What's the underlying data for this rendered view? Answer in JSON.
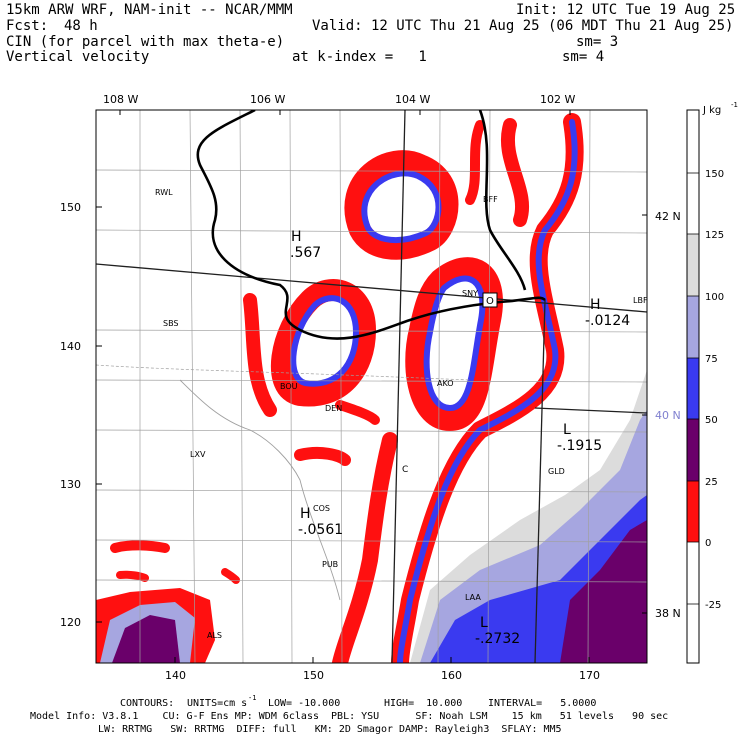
{
  "header": {
    "model": "15km ARW WRF, NAM-init -- NCAR/MMM",
    "init": "Init: 12 UTC Tue 19 Aug 25",
    "fcst_label": "Fcst:",
    "fcst_value": "48 h",
    "valid": "Valid: 12 UTC Thu 21 Aug 25 (06 MDT Thu 21 Aug 25)",
    "field1": "CIN (for parcel with max theta-e)",
    "sm1": "sm= 3",
    "field2": "Vertical velocity",
    "k_index": "at k-index =   1",
    "sm2": "sm= 4"
  },
  "map": {
    "top_lon_labels": [
      "108 W",
      "106 W",
      "104 W",
      "102 W"
    ],
    "right_lat_labels": [
      "42 N",
      "40 N",
      "38 N"
    ],
    "left_y_ticks": [
      "150",
      "140",
      "130",
      "120"
    ],
    "bottom_x_ticks": [
      "140",
      "150",
      "160",
      "170"
    ],
    "stations": [
      "RWL",
      "SBS",
      "BOU",
      "DEN",
      "LXV",
      "COS",
      "PUB",
      "ALS",
      "AKO",
      "SNY",
      "LBF",
      "GLD",
      "LAA",
      "BFF"
    ],
    "station_label_c": "C",
    "highs_lows": [
      {
        "letter": "H",
        "value": ".567"
      },
      {
        "letter": "H",
        "value": "-.0124"
      },
      {
        "letter": "L",
        "value": "-.1915"
      },
      {
        "letter": "H",
        "value": "-.0561"
      },
      {
        "letter": "L",
        "value": "-.2732"
      }
    ],
    "site_marker": "O"
  },
  "colorbar": {
    "units": "J kg",
    "units_exp": "-1",
    "labels": [
      "150",
      "125",
      "100",
      "75",
      "50",
      "25",
      "0",
      "-25"
    ],
    "fills": [
      "#ffffff",
      "#ffffff",
      "#dcdcdc",
      "#a6a6e0",
      "#3a3af0",
      "#6a006a",
      "#ff1010",
      "#ffffff",
      "#ffffff"
    ]
  },
  "footer": {
    "contours_label": "CONTOURS:",
    "units": "UNITS=cm s",
    "units_exp": "-1",
    "low": "LOW= -10.000",
    "high": "HIGH=  10.000",
    "interval": "INTERVAL=   5.0000",
    "model_info_1": "Model Info: V3.8.1    CU: G-F Ens MP: WDM 6class  PBL: YSU      SF: Noah LSM    15 km   51 levels   90 sec",
    "model_info_2": "LW: RRTMG   SW: RRTMG  DIFF: full   KM: 2D Smagor DAMP: Rayleigh3  SFLAY: MM5"
  },
  "colors": {
    "red": "#ff1010",
    "purple": "#6a006a",
    "blue": "#3a3af0",
    "lavender": "#a6a6e0",
    "gray": "#dcdcdc"
  }
}
